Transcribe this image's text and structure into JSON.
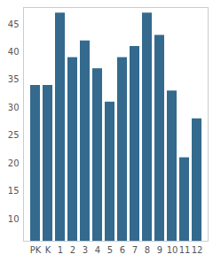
{
  "chart_data": {
    "type": "bar",
    "categories": [
      "PK",
      "K",
      "1",
      "2",
      "3",
      "4",
      "5",
      "6",
      "7",
      "8",
      "9",
      "10",
      "11",
      "12"
    ],
    "values": [
      34,
      34,
      47,
      39,
      42,
      37,
      31,
      39,
      41,
      47,
      43,
      33,
      21,
      28
    ],
    "color": "#346a8e",
    "ylim": [
      6,
      48
    ],
    "yticks": [
      10,
      15,
      20,
      25,
      30,
      35,
      40,
      45
    ],
    "grid": false
  }
}
